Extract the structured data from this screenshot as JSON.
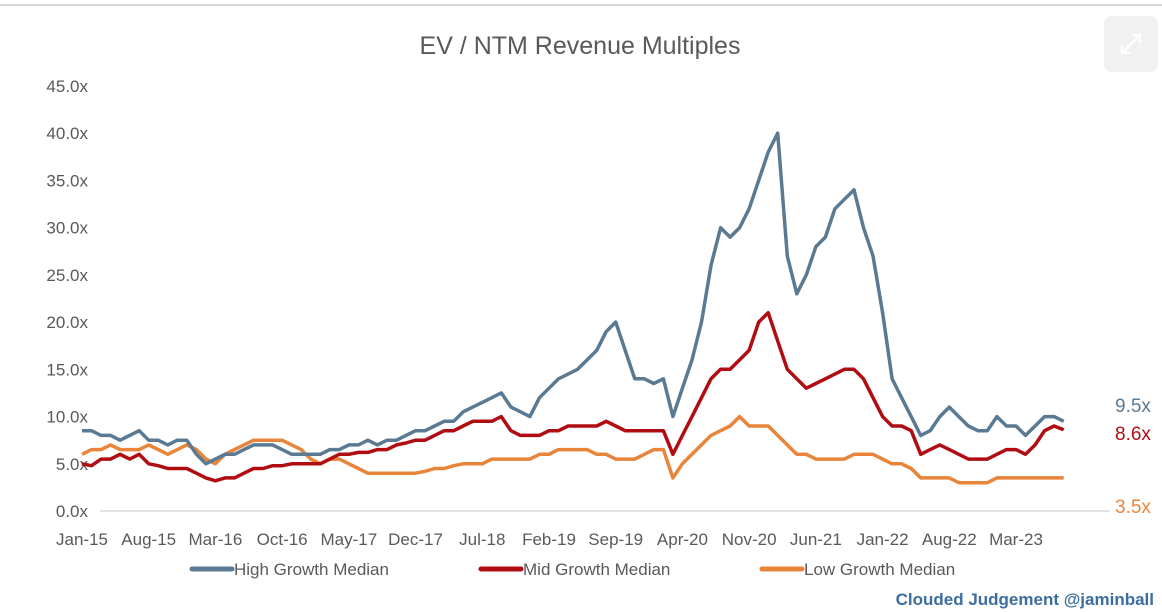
{
  "chart_data": {
    "type": "line",
    "title": "EV / NTM Revenue Multiples",
    "xlabel": "",
    "ylabel": "",
    "ylim": [
      0,
      45
    ],
    "yticks": [
      "0.0x",
      "5.0x",
      "10.0x",
      "15.0x",
      "20.0x",
      "25.0x",
      "30.0x",
      "35.0x",
      "40.0x",
      "45.0x"
    ],
    "xticks": [
      "Jan-15",
      "Aug-15",
      "Mar-16",
      "Oct-16",
      "May-17",
      "Dec-17",
      "Jul-18",
      "Feb-19",
      "Sep-19",
      "Apr-20",
      "Nov-20",
      "Jun-21",
      "Jan-22",
      "Aug-22",
      "Mar-23"
    ],
    "x_start": "Jan-15",
    "x_step": "1 month",
    "legend_position": "bottom",
    "series": [
      {
        "name": "High Growth Median",
        "color": "#5a7a93",
        "end_label": "9.5x",
        "values": [
          8.5,
          8.5,
          8,
          8,
          7.5,
          8,
          8.5,
          7.5,
          7.5,
          7,
          7.5,
          7.5,
          6,
          5,
          5.5,
          6,
          6,
          6.5,
          7,
          7,
          7,
          6.5,
          6,
          6,
          6,
          6,
          6.5,
          6.5,
          7,
          7,
          7.5,
          7,
          7.5,
          7.5,
          8,
          8.5,
          8.5,
          9,
          9.5,
          9.5,
          10.5,
          11,
          11.5,
          12,
          12.5,
          11,
          10.5,
          10,
          12,
          13,
          14,
          14.5,
          15,
          16,
          17,
          19,
          20,
          17,
          14,
          14,
          13.5,
          14,
          10,
          13,
          16,
          20,
          26,
          30,
          29,
          30,
          32,
          35,
          38,
          40,
          27,
          23,
          25,
          28,
          29,
          32,
          33,
          34,
          30,
          27,
          21,
          14,
          12,
          10,
          8,
          8.5,
          10,
          11,
          10,
          9,
          8.5,
          8.5,
          10,
          9,
          9,
          8,
          9,
          10,
          10,
          9.5
        ]
      },
      {
        "name": "Mid Growth Median",
        "color": "#b00d12",
        "end_label": "8.6x",
        "values": [
          5,
          4.8,
          5.5,
          5.5,
          6,
          5.5,
          6,
          5,
          4.8,
          4.5,
          4.5,
          4.5,
          4,
          3.5,
          3.2,
          3.5,
          3.5,
          4,
          4.5,
          4.5,
          4.8,
          4.8,
          5,
          5,
          5,
          5,
          5.5,
          6,
          6,
          6.2,
          6.2,
          6.5,
          6.5,
          7,
          7.2,
          7.5,
          7.5,
          8,
          8.5,
          8.5,
          9,
          9.5,
          9.5,
          9.5,
          10,
          8.5,
          8,
          8,
          8,
          8.5,
          8.5,
          9,
          9,
          9,
          9,
          9.5,
          9,
          8.5,
          8.5,
          8.5,
          8.5,
          8.5,
          6,
          8,
          10,
          12,
          14,
          15,
          15,
          16,
          17,
          20,
          21,
          18,
          15,
          14,
          13,
          13.5,
          14,
          14.5,
          15,
          15,
          14,
          12,
          10,
          9,
          9,
          8.5,
          6,
          6.5,
          7,
          6.5,
          6,
          5.5,
          5.5,
          5.5,
          6,
          6.5,
          6.5,
          6,
          7,
          8.5,
          9,
          8.6
        ]
      },
      {
        "name": "Low Growth Median",
        "color": "#e8853a",
        "end_label": "3.5x",
        "values": [
          6,
          6.5,
          6.5,
          7,
          6.5,
          6.5,
          6.5,
          7,
          6.5,
          6,
          6.5,
          7,
          6.5,
          5.5,
          5,
          6,
          6.5,
          7,
          7.5,
          7.5,
          7.5,
          7.5,
          7,
          6.5,
          5.5,
          5,
          5.5,
          5.5,
          5,
          4.5,
          4,
          4,
          4,
          4,
          4,
          4,
          4.2,
          4.5,
          4.5,
          4.8,
          5,
          5,
          5,
          5.5,
          5.5,
          5.5,
          5.5,
          5.5,
          6,
          6,
          6.5,
          6.5,
          6.5,
          6.5,
          6,
          6,
          5.5,
          5.5,
          5.5,
          6,
          6.5,
          6.5,
          3.5,
          5,
          6,
          7,
          8,
          8.5,
          9,
          10,
          9,
          9,
          9,
          8,
          7,
          6,
          6,
          5.5,
          5.5,
          5.5,
          5.5,
          6,
          6,
          6,
          5.5,
          5,
          5,
          4.5,
          3.5,
          3.5,
          3.5,
          3.5,
          3,
          3,
          3,
          3,
          3.5,
          3.5,
          3.5,
          3.5,
          3.5,
          3.5,
          3.5,
          3.5
        ]
      }
    ]
  },
  "credit": "Clouded Judgement @jaminball"
}
